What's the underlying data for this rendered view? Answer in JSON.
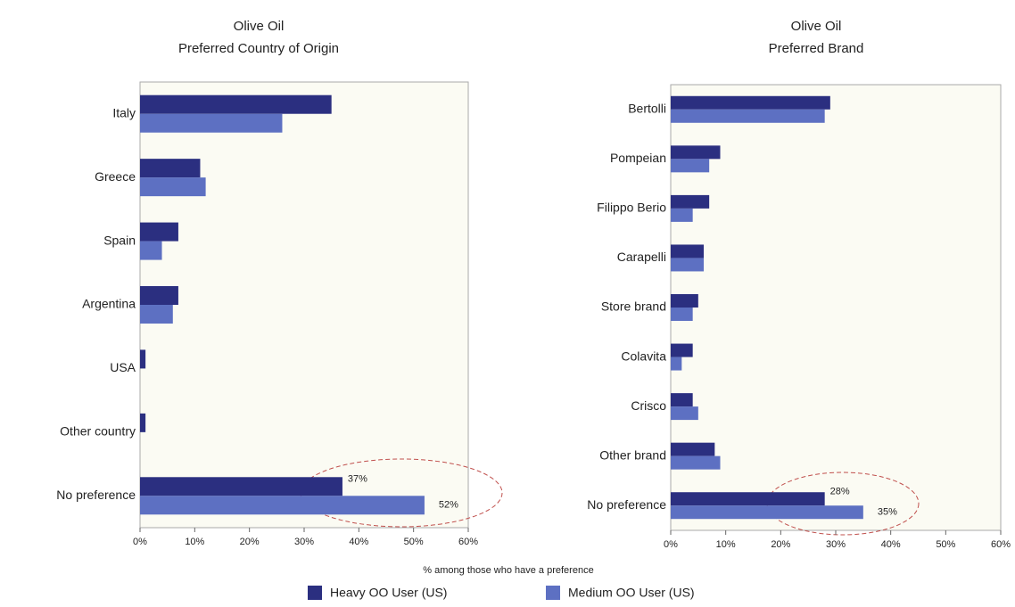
{
  "chart_data": [
    {
      "type": "barh",
      "title": "Olive Oil",
      "subtitle": "Preferred Country of Origin",
      "categories": [
        "Italy",
        "Greece",
        "Spain",
        "Argentina",
        "USA",
        "Other country",
        "No preference"
      ],
      "series": [
        {
          "name": "Heavy OO User (US)",
          "color": "#2b2f80",
          "values": [
            35,
            11,
            7,
            7,
            1,
            1,
            37
          ],
          "value_labels": [
            null,
            null,
            null,
            null,
            null,
            null,
            "37%"
          ]
        },
        {
          "name": "Medium OO User (US)",
          "color": "#5d70c2",
          "values": [
            26,
            12,
            4,
            6,
            0,
            0,
            52
          ],
          "value_labels": [
            null,
            null,
            null,
            null,
            null,
            null,
            "52%"
          ]
        }
      ],
      "xlim": [
        0,
        60
      ],
      "xticks": [
        {
          "value": 0,
          "label": "0%"
        },
        {
          "value": 10,
          "label": "10%"
        },
        {
          "value": 20,
          "label": "20%"
        },
        {
          "value": 30,
          "label": "30%"
        },
        {
          "value": 40,
          "label": "40%"
        },
        {
          "value": 50,
          "label": "50%"
        },
        {
          "value": 60,
          "label": "60%"
        }
      ]
    },
    {
      "type": "barh",
      "title": "Olive Oil",
      "subtitle": "Preferred Brand",
      "categories": [
        "Bertolli",
        "Pompeian",
        "Filippo Berio",
        "Carapelli",
        "Store brand",
        "Colavita",
        "Crisco",
        "Other brand",
        "No preference"
      ],
      "series": [
        {
          "color": "#2b2f80",
          "values": [
            29,
            9,
            7,
            6,
            5,
            4,
            4,
            8,
            28
          ],
          "value_labels": [
            null,
            null,
            null,
            null,
            null,
            null,
            null,
            null,
            "28%"
          ]
        },
        {
          "color": "#5d70c2",
          "values": [
            28,
            7,
            4,
            6,
            4,
            2,
            5,
            9,
            35
          ],
          "value_labels": [
            null,
            null,
            null,
            null,
            null,
            null,
            null,
            null,
            "35%"
          ]
        }
      ],
      "xlim": [
        0,
        60
      ],
      "xticks": [
        {
          "value": 0,
          "label": "0%"
        },
        {
          "value": 10,
          "label": "10%"
        },
        {
          "value": 20,
          "label": "20%"
        },
        {
          "value": 30,
          "label": "30%"
        },
        {
          "value": 40,
          "label": "40%"
        },
        {
          "value": 50,
          "label": "50%"
        },
        {
          "value": 60,
          "label": "60%"
        }
      ]
    }
  ],
  "footnote": "% among those who have a preference"
}
